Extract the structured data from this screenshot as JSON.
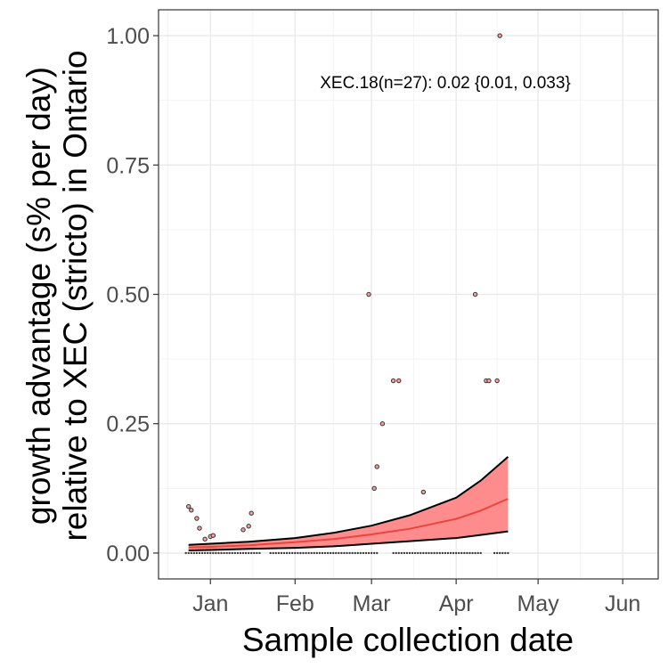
{
  "chart_data": {
    "type": "scatter",
    "xlabel": "Sample collection date",
    "ylabel_lines": [
      "growth advantage (s% per day)",
      "relative to XEC (stricto) in Ontario"
    ],
    "annotation": "XEC.18(n=27): 0.02 {0.01, 0.033}",
    "x_ticks": [
      {
        "label": "Jan",
        "date": "2025-01-01"
      },
      {
        "label": "Feb",
        "date": "2025-02-01"
      },
      {
        "label": "Mar",
        "date": "2025-03-01"
      },
      {
        "label": "Apr",
        "date": "2025-04-01"
      },
      {
        "label": "May",
        "date": "2025-05-01"
      },
      {
        "label": "Jun",
        "date": "2025-06-01"
      }
    ],
    "xlim": [
      "2024-12-13",
      "2025-06-14"
    ],
    "y_ticks": [
      {
        "label": "0.00",
        "value": 0
      },
      {
        "label": "0.25",
        "value": 0.25
      },
      {
        "label": "0.50",
        "value": 0.5
      },
      {
        "label": "0.75",
        "value": 0.75
      },
      {
        "label": "1.00",
        "value": 1
      }
    ],
    "ylim": [
      -0.05,
      1.05
    ],
    "grid": true,
    "colors": {
      "fit": "#F8766D",
      "band": "#FF8080",
      "band_edge": "#000000",
      "point_fill": "#F0A0A0",
      "point_edge": "#333333"
    },
    "points": [
      {
        "date": "2024-12-24",
        "value": 0.09
      },
      {
        "date": "2024-12-25",
        "value": 0.083
      },
      {
        "date": "2024-12-27",
        "value": 0.067
      },
      {
        "date": "2024-12-28",
        "value": 0.048
      },
      {
        "date": "2024-12-30",
        "value": 0.027
      },
      {
        "date": "2025-01-01",
        "value": 0.032
      },
      {
        "date": "2025-01-02",
        "value": 0.034
      },
      {
        "date": "2025-01-13",
        "value": 0.045
      },
      {
        "date": "2025-01-15",
        "value": 0.052
      },
      {
        "date": "2025-01-16",
        "value": 0.077
      },
      {
        "date": "2025-02-28",
        "value": 0.5
      },
      {
        "date": "2025-03-02",
        "value": 0.125
      },
      {
        "date": "2025-03-03",
        "value": 0.167
      },
      {
        "date": "2025-03-05",
        "value": 0.25
      },
      {
        "date": "2025-03-09",
        "value": 0.333
      },
      {
        "date": "2025-03-11",
        "value": 0.333
      },
      {
        "date": "2025-03-20",
        "value": 0.118
      },
      {
        "date": "2025-04-08",
        "value": 0.5
      },
      {
        "date": "2025-04-12",
        "value": 0.333
      },
      {
        "date": "2025-04-13",
        "value": 0.333
      },
      {
        "date": "2025-04-16",
        "value": 0.333
      },
      {
        "date": "2025-04-17",
        "value": 1.0
      }
    ],
    "zero_points": {
      "start": "2024-12-23",
      "end": "2025-04-20",
      "value": 0,
      "gaps": [
        [
          "2025-01-20",
          "2025-01-22"
        ],
        [
          "2025-03-04",
          "2025-03-08"
        ],
        [
          "2025-04-11",
          "2025-04-14"
        ]
      ]
    },
    "fit": {
      "dates": [
        "2024-12-24",
        "2025-01-01",
        "2025-01-15",
        "2025-02-01",
        "2025-02-15",
        "2025-03-01",
        "2025-03-15",
        "2025-04-01",
        "2025-04-10",
        "2025-04-20"
      ],
      "estimate": [
        0.011,
        0.012,
        0.015,
        0.021,
        0.027,
        0.036,
        0.047,
        0.066,
        0.082,
        0.105
      ],
      "lower": [
        0.005,
        0.006,
        0.008,
        0.01,
        0.013,
        0.018,
        0.023,
        0.029,
        0.035,
        0.042
      ],
      "upper": [
        0.016,
        0.018,
        0.022,
        0.029,
        0.039,
        0.053,
        0.073,
        0.107,
        0.14,
        0.186
      ]
    }
  }
}
